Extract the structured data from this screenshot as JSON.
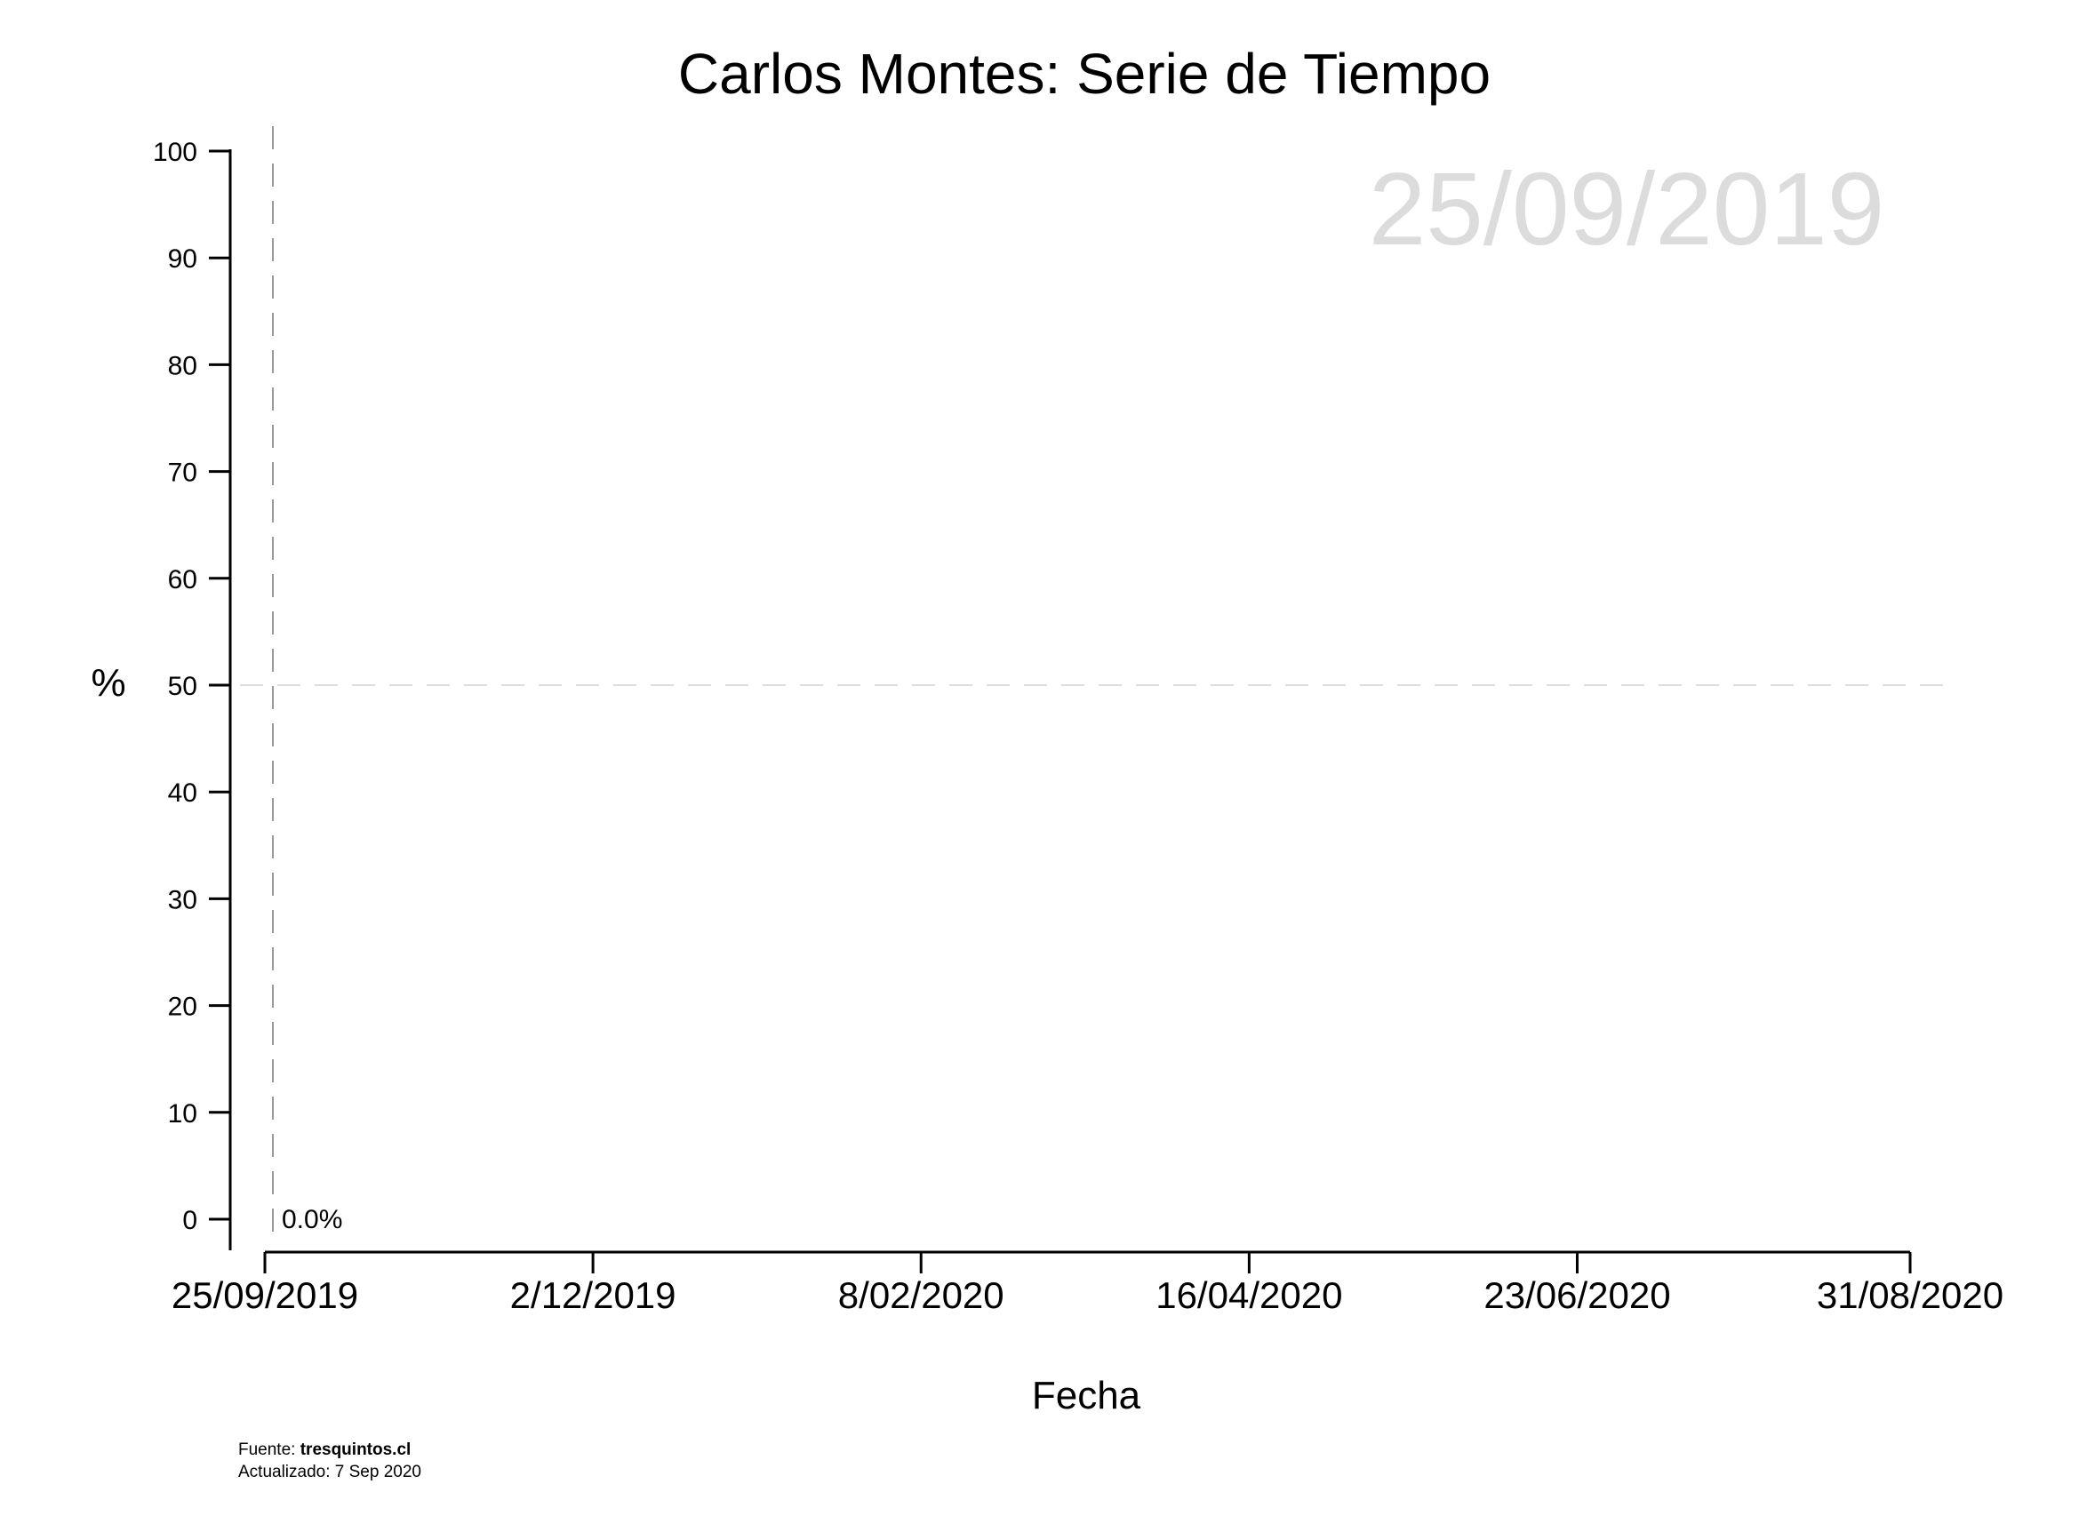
{
  "chart_data": {
    "type": "line",
    "title": "Carlos Montes: Serie de Tiempo",
    "watermark_date": "25/09/2019",
    "xlabel": "Fecha",
    "ylabel": "%",
    "x_type": "date",
    "xlim": [
      "2019-09-25",
      "2020-08-31"
    ],
    "x_ticks": [
      {
        "date": "2019-09-25",
        "label": "25/09/2019"
      },
      {
        "date": "2019-12-02",
        "label": "2/12/2019"
      },
      {
        "date": "2020-02-08",
        "label": "8/02/2020"
      },
      {
        "date": "2020-04-16",
        "label": "16/04/2020"
      },
      {
        "date": "2020-06-23",
        "label": "23/06/2020"
      },
      {
        "date": "2020-08-31",
        "label": "31/08/2020"
      }
    ],
    "ylim": [
      0,
      100
    ],
    "y_ticks": [
      0,
      10,
      20,
      30,
      40,
      50,
      60,
      70,
      80,
      90,
      100
    ],
    "reference_lines": [
      {
        "axis": "y",
        "value": 50,
        "style": "dashed",
        "color": "#dddddd"
      },
      {
        "axis": "x",
        "value": "2019-09-25",
        "style": "dashed",
        "color": "#999999"
      }
    ],
    "series": [
      {
        "points": [
          {
            "x": "2019-09-25",
            "y": 0.0,
            "label": "0.0%"
          }
        ]
      }
    ],
    "grid": false,
    "legend": "none"
  },
  "footer": {
    "source_prefix": "Fuente: ",
    "source_name": "tresquintos.cl",
    "updated": "Actualizado: 7 Sep 2020"
  }
}
